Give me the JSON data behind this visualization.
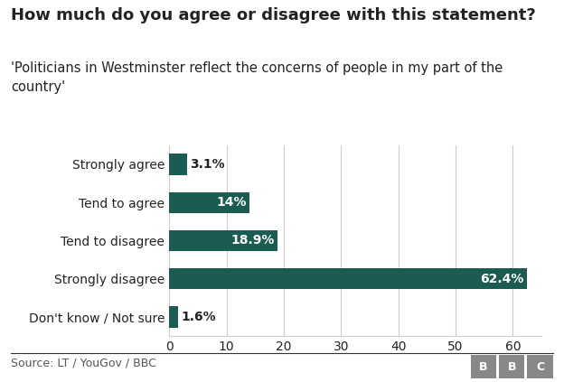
{
  "title": "How much do you agree or disagree with this statement?",
  "subtitle": "'Politicians in Westminster reflect the concerns of people in my part of the\ncountry'",
  "categories": [
    "Strongly agree",
    "Tend to agree",
    "Tend to disagree",
    "Strongly disagree",
    "Don't know / Not sure"
  ],
  "values": [
    3.1,
    14.0,
    18.9,
    62.4,
    1.6
  ],
  "labels": [
    "3.1%",
    "14%",
    "18.9%",
    "62.4%",
    "1.6%"
  ],
  "bar_color": "#1a5c52",
  "background_color": "#ffffff",
  "grid_color": "#cccccc",
  "text_color": "#222222",
  "source_text": "Source: LT / YouGov / BBC",
  "xlim": [
    0,
    65
  ],
  "xticks": [
    0,
    10,
    20,
    30,
    40,
    50,
    60
  ],
  "title_fontsize": 13,
  "subtitle_fontsize": 10.5,
  "label_fontsize": 10,
  "tick_fontsize": 10,
  "source_fontsize": 9,
  "threshold": 8
}
